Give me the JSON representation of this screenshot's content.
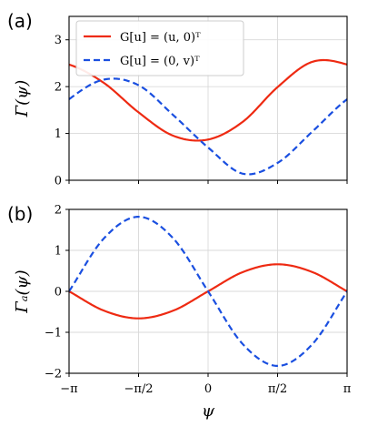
{
  "chart_data": [
    {
      "type": "line",
      "panel_label": "(a)",
      "ylabel": "Γ(ψ)",
      "xlabel": "",
      "xlim": [
        -3.14159,
        3.14159
      ],
      "ylim": [
        0,
        3.5
      ],
      "x_ticks": [
        -3.14159,
        -1.5708,
        0,
        1.5708,
        3.14159
      ],
      "x_tick_labels": [
        "",
        "",
        "",
        "",
        ""
      ],
      "y_ticks": [
        0,
        1,
        2,
        3
      ],
      "y_tick_labels": [
        "0",
        "1",
        "2",
        "3"
      ],
      "grid": true,
      "legend": "top-left",
      "x": [
        -3.14159,
        -2.35619,
        -1.5708,
        -0.7854,
        0,
        0.7854,
        1.5708,
        2.35619,
        3.14159
      ],
      "series": [
        {
          "name": "G[u] = (u, 0)ᵀ",
          "color": "#ee2a12",
          "style": "solid",
          "values": [
            2.47,
            2.08,
            1.45,
            0.95,
            0.87,
            1.25,
            1.99,
            2.53,
            2.47
          ]
        },
        {
          "name": "G[u] = (0, v)ᵀ",
          "color": "#1a4fe0",
          "style": "dashed",
          "values": [
            1.73,
            2.15,
            2.03,
            1.39,
            0.7,
            0.14,
            0.37,
            1.04,
            1.73
          ]
        }
      ]
    },
    {
      "type": "line",
      "panel_label": "(b)",
      "ylabel": "Γₐ(ψ)",
      "xlabel": "ψ",
      "xlim": [
        -3.14159,
        3.14159
      ],
      "ylim": [
        -2,
        2
      ],
      "x_ticks": [
        -3.14159,
        -1.5708,
        0,
        1.5708,
        3.14159
      ],
      "x_tick_labels": [
        "−π",
        "−π/2",
        "0",
        "π/2",
        "π"
      ],
      "y_ticks": [
        -2,
        -1,
        0,
        1,
        2
      ],
      "y_tick_labels": [
        "−2",
        "−1",
        "0",
        "1",
        "2"
      ],
      "grid": true,
      "legend": "",
      "x": [
        -3.14159,
        -2.35619,
        -1.5708,
        -0.7854,
        0,
        0.7854,
        1.5708,
        2.35619,
        3.14159
      ],
      "series": [
        {
          "name": "G[u] = (u, 0)ᵀ",
          "color": "#ee2a12",
          "style": "solid",
          "values": [
            0,
            -0.47,
            -0.66,
            -0.47,
            0,
            0.47,
            0.66,
            0.47,
            0
          ]
        },
        {
          "name": "G[u] = (0, v)ᵀ",
          "color": "#1a4fe0",
          "style": "dashed",
          "values": [
            0,
            1.29,
            1.82,
            1.29,
            0,
            -1.29,
            -1.82,
            -1.29,
            0
          ]
        }
      ]
    }
  ]
}
